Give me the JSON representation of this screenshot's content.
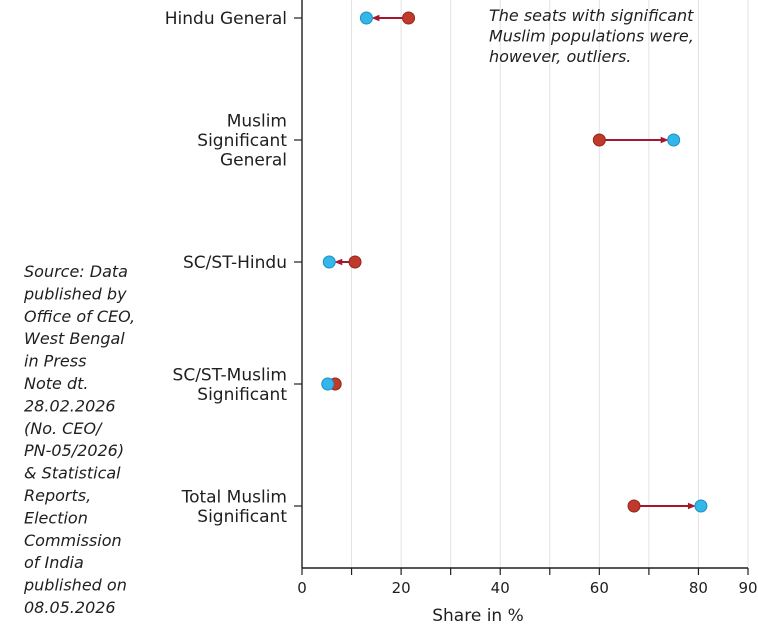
{
  "chart_data": {
    "type": "dumbbell",
    "xlabel": "Share in %",
    "xlim": [
      0,
      90
    ],
    "x_ticks": [
      0,
      10,
      20,
      30,
      40,
      50,
      60,
      70,
      80,
      90
    ],
    "x_tick_labels": [
      "0",
      "",
      "20",
      "",
      "40",
      "",
      "60",
      "",
      "80",
      "90"
    ],
    "categories": [
      "Hindu General",
      "Muslim Significant General",
      "SC/ST-Hindu",
      "SC/ST-Muslim Significant",
      "Total Muslim Significant"
    ],
    "series": [
      {
        "color": "#c0392b",
        "values": [
          21.5,
          60,
          10.7,
          6.7,
          67
        ]
      },
      {
        "color": "#33b6ea",
        "values": [
          13,
          75,
          5.5,
          5.2,
          80.5
        ]
      }
    ],
    "annotation": "The seats with significant Muslim populations were, however, outliers.",
    "source": "Source: Data published by Office of CEO, West Bengal in Press Note dt. 28.02.2026 (No. CEO/ PN-05/2026) & Statistical Reports, Election Commission of India published on 08.05.2026"
  },
  "colors": {
    "connector": "#a3182e",
    "text": "#1f1f1f",
    "grid": "#e3e3e3"
  }
}
